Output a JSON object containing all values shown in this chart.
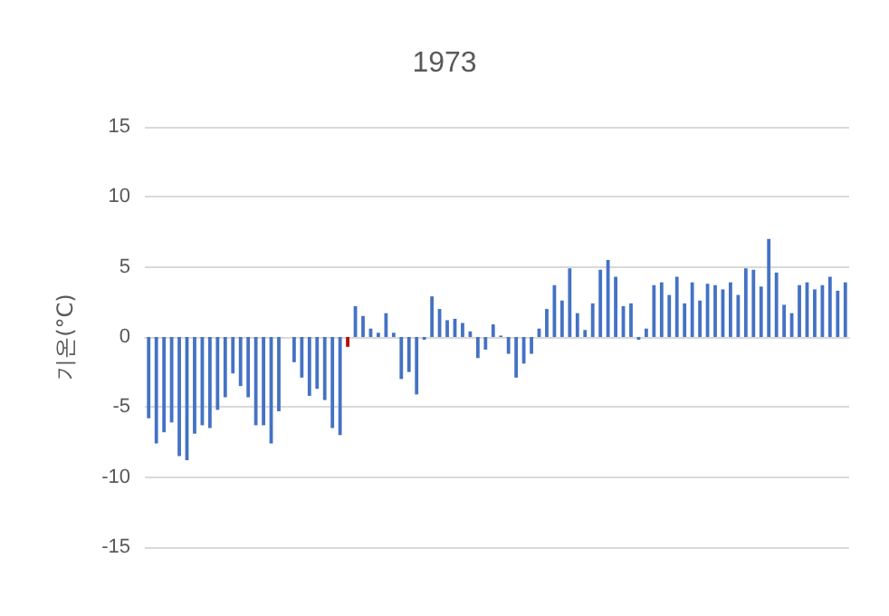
{
  "chart_data": {
    "type": "bar",
    "title": "1973",
    "ylabel": "기온(°C)",
    "categories": [
      null,
      null,
      null,
      null,
      null,
      null,
      null,
      null,
      null,
      null,
      null,
      null,
      null,
      null,
      null,
      null,
      null,
      null,
      null,
      null,
      null,
      null,
      null,
      null,
      null,
      null,
      null,
      null,
      null,
      null,
      null,
      null,
      null,
      null,
      null,
      null,
      null,
      null,
      null,
      null,
      null,
      null,
      null,
      null,
      null,
      null,
      null,
      null,
      null,
      null,
      null,
      null,
      null,
      null,
      null,
      null,
      null,
      null,
      null,
      null,
      null,
      null,
      null,
      null,
      null,
      null,
      null,
      null,
      null,
      null,
      null,
      null,
      null,
      null,
      null,
      null,
      null,
      null,
      null,
      null,
      null,
      null,
      null,
      null,
      null,
      null,
      null,
      null,
      null,
      null,
      null,
      null
    ],
    "values": [
      -5.8,
      -7.6,
      -6.8,
      -6.1,
      -8.5,
      -8.8,
      -6.9,
      -6.3,
      -6.5,
      -5.2,
      -4.3,
      -2.6,
      -3.5,
      -4.3,
      -6.3,
      -6.3,
      -7.6,
      -5.3,
      0,
      -1.8,
      -2.9,
      -4.2,
      -3.7,
      -4.5,
      -6.5,
      -7.0,
      -0.7,
      2.2,
      1.5,
      0.6,
      0.3,
      1.7,
      0.3,
      -3.0,
      -2.5,
      -4.1,
      -0.2,
      2.9,
      2.0,
      1.2,
      1.3,
      1.0,
      0.4,
      -1.5,
      -0.9,
      0.9,
      0.1,
      -1.2,
      -2.9,
      -1.9,
      -1.2,
      0.6,
      2.0,
      3.7,
      2.6,
      4.9,
      1.7,
      0.5,
      2.4,
      4.8,
      5.5,
      4.3,
      2.2,
      2.4,
      -0.2,
      0.6,
      3.7,
      3.9,
      3.0,
      4.3,
      2.4,
      3.9,
      2.6,
      3.8,
      3.7,
      3.4,
      3.9,
      3.0,
      4.9,
      4.8,
      3.6,
      7.0,
      4.6,
      2.3,
      1.7,
      3.7,
      3.9,
      3.4,
      3.7,
      4.3,
      3.3,
      3.9
    ],
    "colors": [
      "#4472c4",
      "#4472c4",
      "#4472c4",
      "#4472c4",
      "#4472c4",
      "#4472c4",
      "#4472c4",
      "#4472c4",
      "#4472c4",
      "#4472c4",
      "#4472c4",
      "#4472c4",
      "#4472c4",
      "#4472c4",
      "#4472c4",
      "#4472c4",
      "#4472c4",
      "#4472c4",
      "#4472c4",
      "#4472c4",
      "#4472c4",
      "#4472c4",
      "#4472c4",
      "#4472c4",
      "#4472c4",
      "#4472c4",
      "#c00000",
      "#4472c4",
      "#4472c4",
      "#4472c4",
      "#4472c4",
      "#4472c4",
      "#4472c4",
      "#4472c4",
      "#4472c4",
      "#4472c4",
      "#4472c4",
      "#4472c4",
      "#4472c4",
      "#4472c4",
      "#4472c4",
      "#4472c4",
      "#4472c4",
      "#4472c4",
      "#4472c4",
      "#4472c4",
      "#4472c4",
      "#4472c4",
      "#4472c4",
      "#4472c4",
      "#4472c4",
      "#4472c4",
      "#4472c4",
      "#4472c4",
      "#4472c4",
      "#4472c4",
      "#4472c4",
      "#4472c4",
      "#4472c4",
      "#4472c4",
      "#4472c4",
      "#4472c4",
      "#4472c4",
      "#4472c4",
      "#4472c4",
      "#4472c4",
      "#4472c4",
      "#4472c4",
      "#4472c4",
      "#4472c4",
      "#4472c4",
      "#4472c4",
      "#4472c4",
      "#4472c4",
      "#4472c4",
      "#4472c4",
      "#4472c4",
      "#4472c4",
      "#4472c4",
      "#4472c4",
      "#4472c4",
      "#4472c4",
      "#4472c4",
      "#4472c4",
      "#4472c4",
      "#4472c4",
      "#4472c4",
      "#4472c4",
      "#4472c4",
      "#4472c4",
      "#4472c4",
      "#4472c4"
    ],
    "ylim": [
      -15,
      15
    ],
    "yticks": [
      -15,
      -10,
      -5,
      0,
      5,
      10,
      15
    ],
    "grid": "y"
  }
}
